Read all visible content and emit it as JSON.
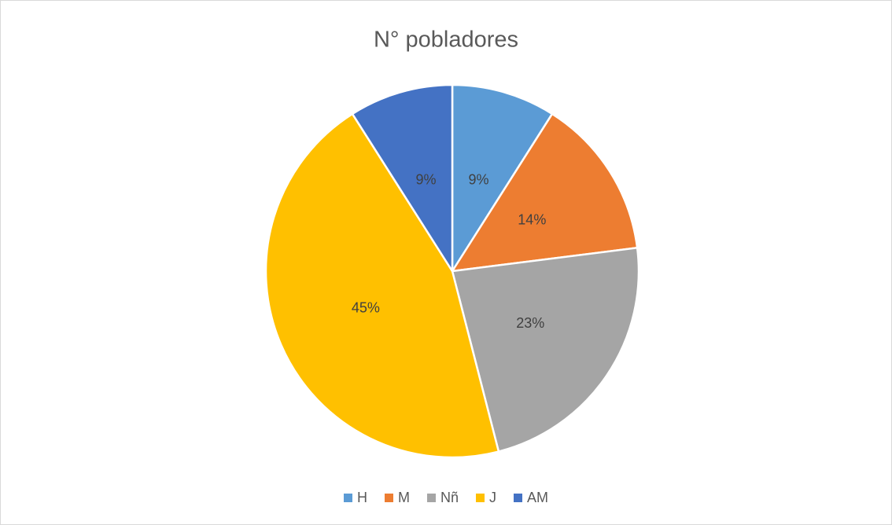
{
  "chart_data": {
    "type": "pie",
    "title": "N° pobladores",
    "categories": [
      "H",
      "M",
      "Nñ",
      "J",
      "AM"
    ],
    "values": [
      9,
      14,
      23,
      45,
      9
    ],
    "value_labels": [
      "9%",
      "14%",
      "23%",
      "45%",
      "9%"
    ],
    "colors": [
      "#5b9bd5",
      "#ed7d31",
      "#a5a5a5",
      "#ffc000",
      "#4472c4"
    ],
    "legend": "bottom"
  }
}
